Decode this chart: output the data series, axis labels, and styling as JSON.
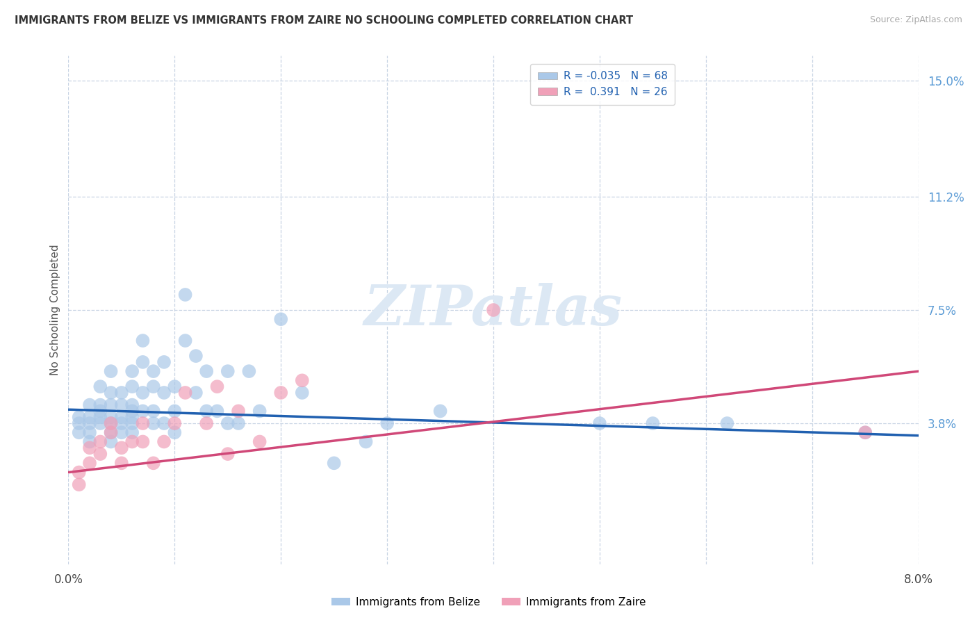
{
  "title": "IMMIGRANTS FROM BELIZE VS IMMIGRANTS FROM ZAIRE NO SCHOOLING COMPLETED CORRELATION CHART",
  "source": "Source: ZipAtlas.com",
  "ylabel": "No Schooling Completed",
  "xlim": [
    0.0,
    0.08
  ],
  "ylim": [
    -0.008,
    0.158
  ],
  "xticks": [
    0.0,
    0.01,
    0.02,
    0.03,
    0.04,
    0.05,
    0.06,
    0.07,
    0.08
  ],
  "xticklabels": [
    "0.0%",
    "",
    "",
    "",
    "",
    "",
    "",
    "",
    "8.0%"
  ],
  "yticks_right": [
    0.038,
    0.075,
    0.112,
    0.15
  ],
  "yticks_right_labels": [
    "3.8%",
    "7.5%",
    "11.2%",
    "15.0%"
  ],
  "belize_R": -0.035,
  "belize_N": 68,
  "zaire_R": 0.391,
  "zaire_N": 26,
  "belize_color": "#aac8e8",
  "belize_line_color": "#2060b0",
  "zaire_color": "#f0a0b8",
  "zaire_line_color": "#d04878",
  "grid_color": "#c8d4e4",
  "background_color": "#ffffff",
  "watermark_text": "ZIPatlas",
  "legend_label_belize": "Immigrants from Belize",
  "legend_label_zaire": "Immigrants from Zaire",
  "belize_x": [
    0.001,
    0.001,
    0.001,
    0.002,
    0.002,
    0.002,
    0.002,
    0.002,
    0.003,
    0.003,
    0.003,
    0.003,
    0.003,
    0.004,
    0.004,
    0.004,
    0.004,
    0.004,
    0.004,
    0.004,
    0.005,
    0.005,
    0.005,
    0.005,
    0.005,
    0.006,
    0.006,
    0.006,
    0.006,
    0.006,
    0.006,
    0.006,
    0.007,
    0.007,
    0.007,
    0.007,
    0.008,
    0.008,
    0.008,
    0.008,
    0.009,
    0.009,
    0.009,
    0.01,
    0.01,
    0.01,
    0.011,
    0.011,
    0.012,
    0.012,
    0.013,
    0.013,
    0.014,
    0.015,
    0.015,
    0.016,
    0.017,
    0.018,
    0.02,
    0.022,
    0.025,
    0.028,
    0.03,
    0.035,
    0.05,
    0.055,
    0.062,
    0.075
  ],
  "belize_y": [
    0.04,
    0.038,
    0.035,
    0.044,
    0.04,
    0.038,
    0.035,
    0.032,
    0.05,
    0.044,
    0.042,
    0.04,
    0.038,
    0.055,
    0.048,
    0.044,
    0.04,
    0.038,
    0.035,
    0.032,
    0.048,
    0.044,
    0.04,
    0.038,
    0.035,
    0.055,
    0.05,
    0.044,
    0.042,
    0.04,
    0.038,
    0.035,
    0.065,
    0.058,
    0.048,
    0.042,
    0.055,
    0.05,
    0.042,
    0.038,
    0.058,
    0.048,
    0.038,
    0.05,
    0.042,
    0.035,
    0.08,
    0.065,
    0.06,
    0.048,
    0.055,
    0.042,
    0.042,
    0.055,
    0.038,
    0.038,
    0.055,
    0.042,
    0.072,
    0.048,
    0.025,
    0.032,
    0.038,
    0.042,
    0.038,
    0.038,
    0.038,
    0.035
  ],
  "zaire_x": [
    0.001,
    0.001,
    0.002,
    0.002,
    0.003,
    0.003,
    0.004,
    0.004,
    0.005,
    0.005,
    0.006,
    0.007,
    0.007,
    0.008,
    0.009,
    0.01,
    0.011,
    0.013,
    0.014,
    0.015,
    0.016,
    0.018,
    0.02,
    0.022,
    0.04,
    0.075
  ],
  "zaire_y": [
    0.022,
    0.018,
    0.03,
    0.025,
    0.032,
    0.028,
    0.038,
    0.035,
    0.03,
    0.025,
    0.032,
    0.038,
    0.032,
    0.025,
    0.032,
    0.038,
    0.048,
    0.038,
    0.05,
    0.028,
    0.042,
    0.032,
    0.048,
    0.052,
    0.075,
    0.035
  ],
  "belize_trend_x0": 0.0,
  "belize_trend_y0": 0.0425,
  "belize_trend_x1": 0.08,
  "belize_trend_y1": 0.034,
  "zaire_trend_x0": 0.0,
  "zaire_trend_y0": 0.022,
  "zaire_trend_x1": 0.08,
  "zaire_trend_y1": 0.055
}
